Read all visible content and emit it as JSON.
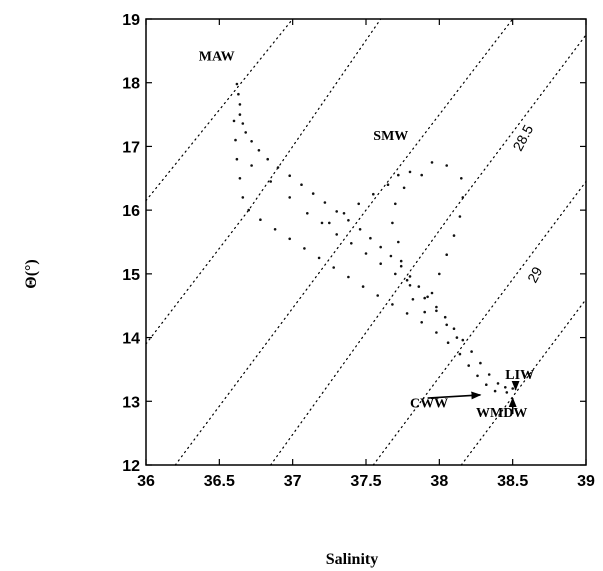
{
  "chart_data": {
    "type": "scatter",
    "xlabel": "Salinity",
    "ylabel": "Θ(°)",
    "xlim": [
      36,
      39
    ],
    "ylim": [
      12,
      19
    ],
    "x_ticks": [
      36,
      36.5,
      37,
      37.5,
      38,
      38.5,
      39
    ],
    "x_tick_labels": [
      "36",
      "36.5",
      "37",
      "37.5",
      "38",
      "38.5",
      "39"
    ],
    "y_ticks": [
      12,
      13,
      14,
      15,
      16,
      17,
      18,
      19
    ],
    "y_tick_labels": [
      "12",
      "13",
      "14",
      "15",
      "16",
      "17",
      "18",
      "19"
    ],
    "grid": false,
    "isopycnals": [
      {
        "points": [
          [
            36.0,
            16.15
          ],
          [
            36.65,
            18.0
          ],
          [
            37.0,
            19.0
          ]
        ]
      },
      {
        "points": [
          [
            36.0,
            13.9
          ],
          [
            36.7,
            16.0
          ],
          [
            37.6,
            19.0
          ]
        ]
      },
      {
        "points": [
          [
            36.2,
            12.0
          ],
          [
            37.5,
            16.0
          ],
          [
            38.5,
            19.0
          ]
        ],
        "label": "28.5",
        "label_at": [
          38.6,
          17.1
        ]
      },
      {
        "points": [
          [
            36.85,
            12.0
          ],
          [
            38.1,
            16.0
          ],
          [
            39.0,
            18.75
          ]
        ]
      },
      {
        "points": [
          [
            37.55,
            12.0
          ],
          [
            39.0,
            16.45
          ]
        ]
      },
      {
        "points": [
          [
            38.15,
            12.0
          ],
          [
            39.0,
            14.6
          ]
        ],
        "label": "29",
        "label_at": [
          38.68,
          14.95
        ]
      }
    ],
    "series": [
      {
        "points": [
          [
            36.62,
            17.98
          ],
          [
            36.63,
            17.82
          ],
          [
            36.64,
            17.66
          ],
          [
            36.64,
            17.5
          ],
          [
            36.66,
            17.36
          ],
          [
            36.68,
            17.22
          ],
          [
            36.72,
            17.08
          ],
          [
            36.77,
            16.94
          ],
          [
            36.83,
            16.8
          ],
          [
            36.9,
            16.67
          ],
          [
            36.98,
            16.54
          ],
          [
            37.06,
            16.4
          ],
          [
            37.14,
            16.26
          ],
          [
            37.22,
            16.12
          ],
          [
            37.3,
            15.98
          ],
          [
            37.38,
            15.84
          ],
          [
            37.46,
            15.7
          ],
          [
            37.53,
            15.56
          ],
          [
            37.6,
            15.42
          ],
          [
            37.67,
            15.28
          ],
          [
            37.74,
            15.12
          ],
          [
            37.8,
            14.96
          ],
          [
            37.86,
            14.8
          ],
          [
            37.92,
            14.64
          ],
          [
            37.98,
            14.48
          ],
          [
            38.04,
            14.32
          ],
          [
            38.1,
            14.14
          ],
          [
            38.16,
            13.96
          ],
          [
            38.22,
            13.78
          ],
          [
            38.28,
            13.6
          ],
          [
            38.34,
            13.42
          ],
          [
            38.4,
            13.28
          ],
          [
            38.45,
            13.22
          ],
          [
            38.5,
            13.2
          ]
        ]
      },
      {
        "points": [
          [
            36.6,
            17.4
          ],
          [
            36.61,
            17.1
          ],
          [
            36.62,
            16.8
          ],
          [
            36.64,
            16.5
          ],
          [
            36.66,
            16.2
          ],
          [
            36.7,
            16.0
          ],
          [
            36.78,
            15.85
          ],
          [
            36.88,
            15.7
          ],
          [
            36.98,
            15.55
          ],
          [
            37.08,
            15.4
          ],
          [
            37.18,
            15.25
          ],
          [
            37.28,
            15.1
          ],
          [
            37.38,
            14.95
          ],
          [
            37.48,
            14.8
          ],
          [
            37.58,
            14.66
          ],
          [
            37.68,
            14.52
          ],
          [
            37.78,
            14.38
          ],
          [
            37.88,
            14.24
          ],
          [
            37.98,
            14.08
          ],
          [
            38.06,
            13.92
          ],
          [
            38.14,
            13.74
          ],
          [
            38.2,
            13.56
          ],
          [
            38.26,
            13.4
          ],
          [
            38.32,
            13.26
          ],
          [
            38.38,
            13.16
          ],
          [
            38.46,
            13.14
          ]
        ]
      },
      {
        "points": [
          [
            36.72,
            16.7
          ],
          [
            36.85,
            16.45
          ],
          [
            36.98,
            16.2
          ],
          [
            37.1,
            15.95
          ],
          [
            37.2,
            15.8
          ],
          [
            37.3,
            15.62
          ],
          [
            37.4,
            15.48
          ],
          [
            37.5,
            15.32
          ],
          [
            37.6,
            15.16
          ],
          [
            37.7,
            15.0
          ],
          [
            37.8,
            14.82
          ],
          [
            37.9,
            14.62
          ],
          [
            37.98,
            14.42
          ],
          [
            38.05,
            14.2
          ],
          [
            38.12,
            14.0
          ]
        ]
      },
      {
        "points": [
          [
            37.25,
            15.8
          ],
          [
            37.35,
            15.95
          ],
          [
            37.45,
            16.1
          ],
          [
            37.55,
            16.25
          ],
          [
            37.65,
            16.4
          ],
          [
            37.72,
            16.55
          ],
          [
            37.8,
            16.6
          ],
          [
            37.88,
            16.55
          ],
          [
            37.76,
            16.35
          ],
          [
            37.7,
            16.1
          ],
          [
            37.68,
            15.8
          ],
          [
            37.72,
            15.5
          ],
          [
            37.74,
            15.2
          ],
          [
            37.78,
            14.9
          ],
          [
            37.82,
            14.6
          ],
          [
            37.9,
            14.4
          ],
          [
            37.95,
            14.7
          ],
          [
            38.0,
            15.0
          ],
          [
            38.05,
            15.3
          ],
          [
            38.1,
            15.6
          ],
          [
            38.14,
            15.9
          ],
          [
            38.16,
            16.2
          ],
          [
            38.15,
            16.5
          ],
          [
            38.05,
            16.7
          ],
          [
            37.95,
            16.75
          ]
        ]
      }
    ],
    "annotations": [
      {
        "text": "MAW",
        "at": [
          36.36,
          18.35
        ]
      },
      {
        "text": "SMW",
        "at": [
          37.55,
          17.1
        ]
      },
      {
        "text": "LIW",
        "at": [
          38.45,
          13.35
        ]
      },
      {
        "text": "CWW",
        "at": [
          37.8,
          12.9
        ]
      },
      {
        "text": "WMDW",
        "at": [
          38.25,
          12.75
        ]
      }
    ],
    "arrows": [
      {
        "from": [
          37.92,
          13.05
        ],
        "to": [
          38.28,
          13.1
        ]
      },
      {
        "from": [
          38.52,
          13.3
        ],
        "to": [
          38.52,
          13.18
        ]
      },
      {
        "from": [
          38.5,
          12.8
        ],
        "to": [
          38.5,
          13.05
        ]
      }
    ]
  }
}
